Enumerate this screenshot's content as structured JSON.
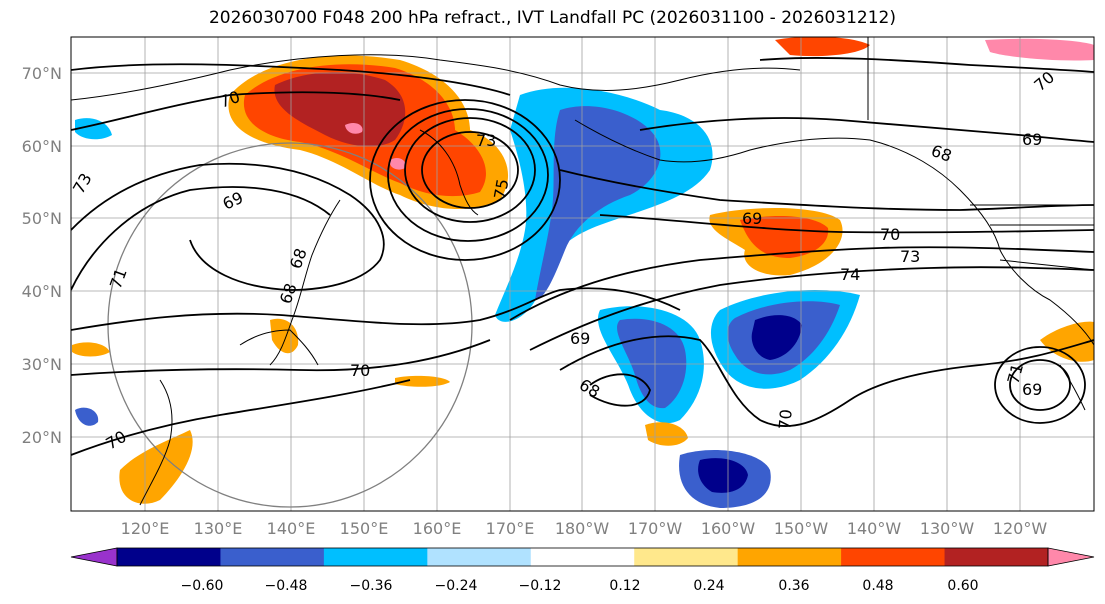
{
  "title": "2026030700 F048 200 hPa refract., IVT Landfall PC (2026031100 - 2026031212)",
  "lat_labels": [
    "70°N",
    "60°N",
    "50°N",
    "40°N",
    "30°N",
    "20°N"
  ],
  "lon_labels": [
    "120°E",
    "130°E",
    "140°E",
    "150°E",
    "160°E",
    "170°E",
    "180°W",
    "170°W",
    "160°W",
    "150°W",
    "140°W",
    "130°W",
    "120°W"
  ],
  "contour_labels": [
    "70",
    "73",
    "75",
    "73",
    "69",
    "68",
    "71",
    "68",
    "69",
    "70",
    "73",
    "74",
    "70",
    "68",
    "69",
    "70",
    "70",
    "69",
    "68",
    "69",
    "70",
    "71"
  ],
  "colorbar": {
    "ticks": [
      "−0.60",
      "−0.48",
      "−0.36",
      "−0.24",
      "−0.12",
      "0.12",
      "0.24",
      "0.36",
      "0.48",
      "0.60"
    ],
    "colors": [
      "#9932cc",
      "#00008b",
      "#3a5fcd",
      "#00bfff",
      "#b0e2ff",
      "#ffffff",
      "#ffe88c",
      "#ffa500",
      "#ff4500",
      "#b22222",
      "#ff88aa"
    ]
  },
  "palette": {
    "neg_strong": "#00008b",
    "neg_mid": "#3a5fcd",
    "neg_light": "#00bfff",
    "neg_faint": "#b0e2ff",
    "pos_faint": "#ffe88c",
    "pos_light": "#ffa500",
    "pos_mid": "#ff4500",
    "pos_strong": "#b22222",
    "pos_max": "#ff88aa"
  }
}
